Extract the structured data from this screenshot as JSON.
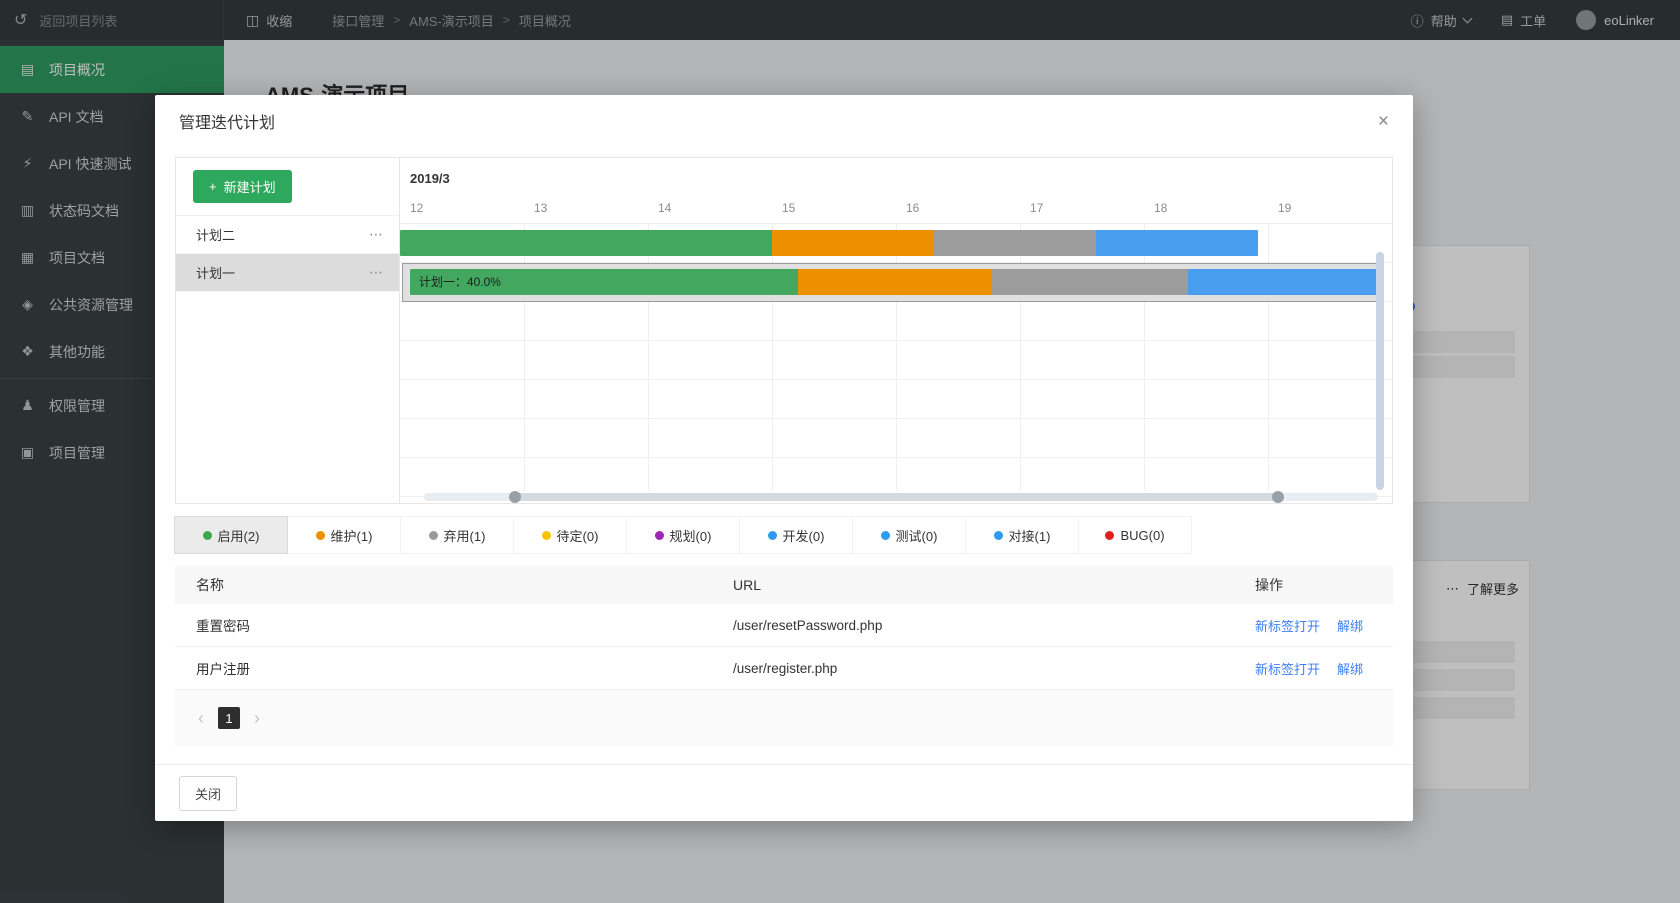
{
  "icons": {
    "back": "↺",
    "collapse": "◫",
    "help": "ⓘ",
    "ticket": "▤",
    "more": "⋯",
    "close": "×",
    "plus": "+"
  },
  "topbar": {
    "back_label": "返回项目列表",
    "collapse_label": "收缩",
    "breadcrumb": [
      "接口管理",
      "AMS-演示项目",
      "项目概况"
    ],
    "help_label": "帮助",
    "ticket_label": "工单",
    "user_name": "eoLinker"
  },
  "sidebar": {
    "items": [
      {
        "key": "overview",
        "icon": "project-overview-icon",
        "glyph": "▤",
        "label": "项目概况",
        "active": true
      },
      {
        "key": "api-doc",
        "icon": "api-doc-icon",
        "glyph": "✎",
        "label": "API 文档"
      },
      {
        "key": "api-test",
        "icon": "api-quick-test-icon",
        "glyph": "⚡",
        "label": "API 快速测试"
      },
      {
        "key": "status-code-doc",
        "icon": "status-code-doc-icon",
        "glyph": "▥",
        "label": "状态码文档"
      },
      {
        "key": "project-doc",
        "icon": "project-doc-icon",
        "glyph": "▦",
        "label": "项目文档"
      },
      {
        "key": "public-resource",
        "icon": "public-resource-icon",
        "glyph": "◈",
        "label": "公共资源管理"
      },
      {
        "key": "other-features",
        "icon": "other-features-icon",
        "glyph": "❖",
        "label": "其他功能"
      },
      {
        "key": "permission",
        "icon": "permission-icon",
        "glyph": "♟",
        "label": "权限管理",
        "divider_above": true
      },
      {
        "key": "project-manage",
        "icon": "project-manage-icon",
        "glyph": "▣",
        "label": "项目管理"
      }
    ]
  },
  "background": {
    "page_title": "AMS-演示项目",
    "learn_more_label": "了解更多"
  },
  "modal": {
    "title": "管理迭代计划",
    "new_plan_label": "新建计划",
    "plans": [
      {
        "name": "计划二",
        "selected": false
      },
      {
        "name": "计划一",
        "selected": true
      }
    ],
    "gantt": {
      "month_label": "2019/3",
      "day_labels": [
        "12",
        "13",
        "14",
        "15",
        "16",
        "17",
        "18",
        "19"
      ],
      "grid_rows": 7,
      "bars": [
        {
          "row": 0,
          "label": "",
          "left_pct": 0,
          "selected": false,
          "segments": [
            {
              "color": "#43A75F",
              "width_pct": 37.5
            },
            {
              "color": "#EC9000",
              "width_pct": 16.3
            },
            {
              "color": "#9C9C9C",
              "width_pct": 16.4
            },
            {
              "color": "#4A9EF0",
              "width_pct": 16.3
            }
          ]
        },
        {
          "row": 1,
          "label": "计划一：40.0%",
          "left_pct": 1,
          "selected": true,
          "segments": [
            {
              "color": "#43A75F",
              "width_pct": 39.1
            },
            {
              "color": "#EC9000",
              "width_pct": 19.6
            },
            {
              "color": "#9C9C9C",
              "width_pct": 19.7
            },
            {
              "color": "#4A9EF0",
              "width_pct": 19.2
            }
          ]
        }
      ],
      "hscroll": {
        "start_pct": 9.5,
        "end_pct": 89.5
      }
    },
    "legend": [
      {
        "label": "启用(2)",
        "color": "#3FA548",
        "active": true
      },
      {
        "label": "维护(1)",
        "color": "#EC9000",
        "active": false
      },
      {
        "label": "弃用(1)",
        "color": "#9A9A9A",
        "active": false
      },
      {
        "label": "待定(0)",
        "color": "#F5C400",
        "active": false
      },
      {
        "label": "规划(0)",
        "color": "#9C27B0",
        "active": false
      },
      {
        "label": "开发(0)",
        "color": "#2E9BF0",
        "active": false
      },
      {
        "label": "测试(0)",
        "color": "#2E9BF0",
        "active": false
      },
      {
        "label": "对接(1)",
        "color": "#2E9BF0",
        "active": false
      },
      {
        "label": "BUG(0)",
        "color": "#E02020",
        "active": false
      }
    ],
    "table": {
      "headers": [
        "名称",
        "URL",
        "操作"
      ],
      "rows": [
        {
          "name": "重置密码",
          "url": "/user/resetPassword.php",
          "actions": [
            "新标签打开",
            "解绑"
          ]
        },
        {
          "name": "用户注册",
          "url": "/user/register.php",
          "actions": [
            "新标签打开",
            "解绑"
          ]
        }
      ]
    },
    "pagination": {
      "prev": "‹",
      "current": "1",
      "next": "›"
    },
    "close_label": "关闭"
  }
}
